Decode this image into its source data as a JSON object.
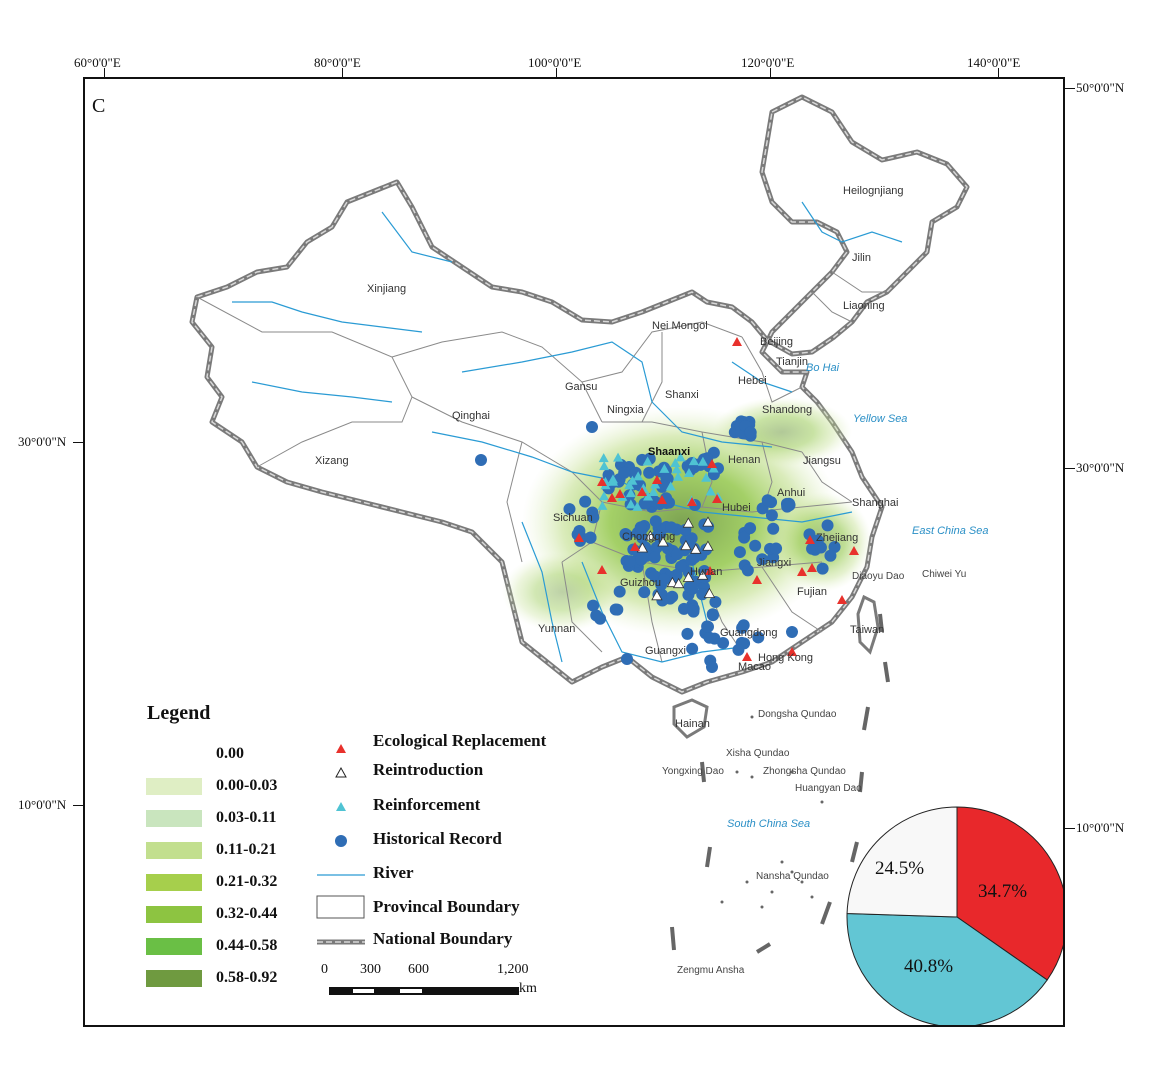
{
  "panel_letter": "C",
  "graticule": {
    "top_lon": [
      "60°0'0\"E",
      "80°0'0\"E",
      "100°0'0\"E",
      "120°0'0\"E",
      "140°0'0\"E"
    ],
    "left_lat": [
      "30°0'0\"N",
      "10°0'0\"N"
    ],
    "right_lat": [
      "50°0'0\"N",
      "30°0'0\"N",
      "10°0'0\"N"
    ]
  },
  "provinces": [
    "Heilognjiang",
    "Jilin",
    "Liaoning",
    "Xinjiang",
    "Nei Mongol",
    "Beijing",
    "Tianjin",
    "Hebei",
    "Gansu",
    "Ningxia",
    "Shanxi",
    "Shandong",
    "Qinghai",
    "Shaanxi",
    "Henan",
    "Jiangsu",
    "Xizang",
    "Anhui",
    "Shanghai",
    "Sichuan",
    "Hubei",
    "Chongqing",
    "Zhejiang",
    "Hunan",
    "Jiangxi",
    "Guizhou",
    "Fujian",
    "Taiwan",
    "Yunnan",
    "Guangdong",
    "Guangxi",
    "Hong Kong",
    "Macao",
    "Hainan"
  ],
  "seas": [
    "Bo Hai",
    "Yellow Sea",
    "East China Sea",
    "South China Sea"
  ],
  "islands": [
    "Diaoyu Dao",
    "Chiwei Yu",
    "Dongsha Qundao",
    "Xisha Qundao",
    "Yongxing Dao",
    "Zhongsha Qundao",
    "Huangyan Dao",
    "Nansha Qundao",
    "Zengmu Ansha"
  ],
  "legend": {
    "title": "Legend",
    "classes": [
      {
        "label": "0.00",
        "color": "#ffffff"
      },
      {
        "label": "0.00-0.03",
        "color": "#dfeec4"
      },
      {
        "label": "0.03-0.11",
        "color": "#c9e5be"
      },
      {
        "label": "0.11-0.21",
        "color": "#c2df8e"
      },
      {
        "label": "0.21-0.32",
        "color": "#a6cf4c"
      },
      {
        "label": "0.32-0.44",
        "color": "#8dc441"
      },
      {
        "label": "0.44-0.58",
        "color": "#6abf45"
      },
      {
        "label": "0.58-0.92",
        "color": "#6f9a40"
      }
    ],
    "symbols": {
      "ecological": "Ecological Replacement",
      "reintroduction": "Reintroduction",
      "reinforcement": "Reinforcement",
      "historical": "Historical Record",
      "river": "River",
      "provincial": "Provincal Boundary",
      "national": "National Boundary"
    },
    "colors": {
      "ecological": "#e8312c",
      "reinforcement": "#4fc3d3",
      "historical": "#2f6db5",
      "river": "#2a9bd4",
      "boundary": "#888888"
    }
  },
  "scale_bar": {
    "ticks": [
      "0",
      "300",
      "600",
      "1,200"
    ],
    "unit": "km"
  },
  "pie": {
    "slices": [
      {
        "label": "34.7%",
        "value": 34.7,
        "color": "#e8282b"
      },
      {
        "label": "40.8%",
        "value": 40.8,
        "color": "#62c6d4"
      },
      {
        "label": "24.5%",
        "value": 24.5,
        "color": "#f8f8f8"
      }
    ]
  }
}
